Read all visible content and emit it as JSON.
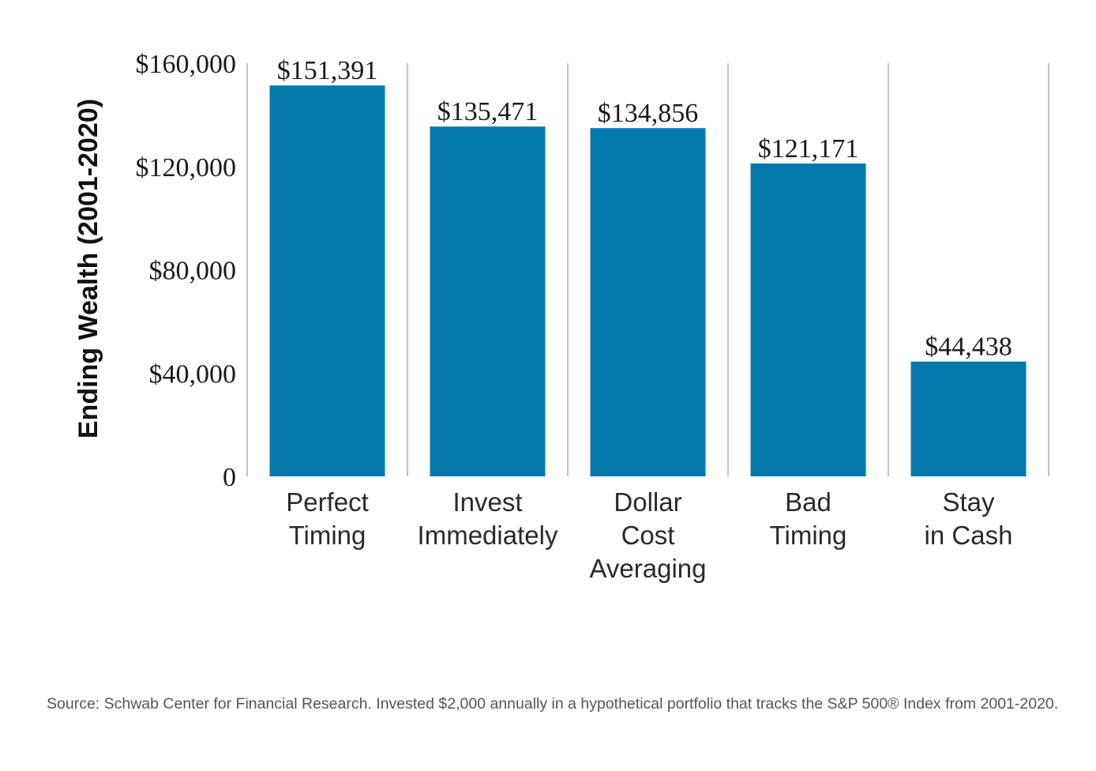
{
  "chart_data": {
    "type": "bar",
    "ylabel": "Ending Wealth (2001-2020)",
    "xlabel": "",
    "categories": [
      [
        "Perfect",
        "Timing"
      ],
      [
        "Invest",
        "Immediately"
      ],
      [
        "Dollar",
        "Cost",
        "Averaging"
      ],
      [
        "Bad",
        "Timing"
      ],
      [
        "Stay",
        "in Cash"
      ]
    ],
    "values": [
      151391,
      135471,
      134856,
      121171,
      44438
    ],
    "data_labels": [
      "$151,391",
      "$135,471",
      "$134,856",
      "$121,171",
      "$44,438"
    ],
    "ylim": [
      0,
      160000
    ],
    "yticks": [
      {
        "value": 0,
        "label": "0"
      },
      {
        "value": 40000,
        "label": "$40,000"
      },
      {
        "value": 80000,
        "label": "$80,000"
      },
      {
        "value": 120000,
        "label": "$120,000"
      },
      {
        "value": 160000,
        "label": "$160,000"
      }
    ],
    "bar_color": "#0479ad",
    "grid": "vertical separators"
  },
  "source_note": "Source: Schwab Center for Financial Research. Invested $2,000 annually in a hypothetical portfolio that tracks the S&P 500® Index from 2001-2020."
}
